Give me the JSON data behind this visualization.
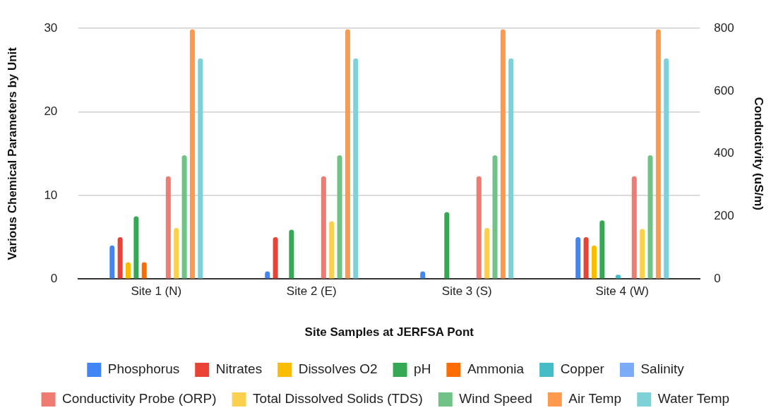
{
  "chart_data": {
    "type": "bar",
    "xlabel": "Site Samples at JERFSA Pont",
    "ylabel": "Various Chemical Parameters by Unit",
    "y2label": "Conductivity (uS/m)",
    "categories": [
      "Site 1 (N)",
      "Site 2 (E)",
      "Site 3 (S)",
      "Site 4 (W)"
    ],
    "series": [
      {
        "name": "Phosphorus",
        "color": "#4285f4",
        "values": [
          4.0,
          0.9,
          0.9,
          5.0
        ]
      },
      {
        "name": "Nitrates",
        "color": "#ea4335",
        "values": [
          5.0,
          5.0,
          null,
          5.0
        ]
      },
      {
        "name": "Dissolves O2",
        "color": "#fbbc04",
        "values": [
          2.0,
          null,
          null,
          4.0
        ]
      },
      {
        "name": "pH",
        "color": "#34a853",
        "values": [
          7.5,
          5.9,
          8.0,
          7.0
        ]
      },
      {
        "name": "Ammonia",
        "color": "#ff6d01",
        "values": [
          2.0,
          null,
          null,
          null
        ]
      },
      {
        "name": "Copper",
        "color": "#46bdc6",
        "values": [
          null,
          null,
          null,
          0.5
        ]
      },
      {
        "name": "Salinity",
        "color": "#7baaf7",
        "values": [
          null,
          null,
          null,
          null
        ]
      },
      {
        "name": "Conductivity Probe (ORP)",
        "color": "#f07b72",
        "values": [
          12.3,
          12.3,
          12.3,
          12.3
        ]
      },
      {
        "name": "Total Dissolved Solids (TDS)",
        "color": "#fcd04f",
        "values": [
          6.1,
          6.9,
          6.1,
          6.0
        ]
      },
      {
        "name": "Wind Speed",
        "color": "#71c287",
        "values": [
          14.8,
          14.8,
          14.8,
          14.8
        ]
      },
      {
        "name": "Air Temp",
        "color": "#ff994d",
        "values": [
          29.9,
          29.9,
          29.9,
          29.9
        ]
      },
      {
        "name": "Water Temp",
        "color": "#7ed1d7",
        "values": [
          26.4,
          26.4,
          26.4,
          26.4
        ]
      }
    ],
    "ylim": [
      0,
      30
    ],
    "yticks": [
      0,
      10,
      20,
      30
    ],
    "y2lim": [
      0,
      800
    ],
    "y2ticks": [
      0,
      200,
      400,
      600,
      800
    ],
    "grid": "y",
    "legend": "bottom"
  }
}
